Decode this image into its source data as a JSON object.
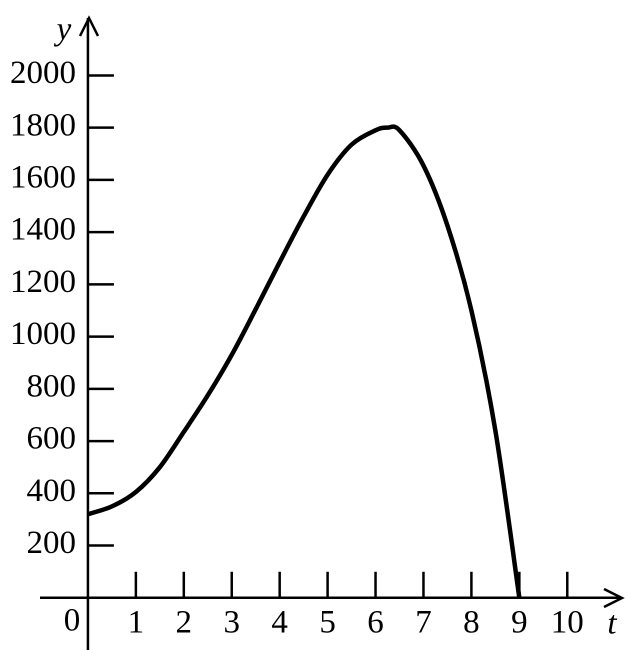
{
  "chart_data": {
    "type": "line",
    "x_label": "t",
    "y_label": "y",
    "origin_label": 0,
    "x": [
      0,
      0.5,
      1,
      1.5,
      2,
      2.5,
      3,
      3.5,
      4,
      4.5,
      5,
      5.5,
      6,
      6.25,
      6.5,
      7,
      7.5,
      8,
      8.5,
      9
    ],
    "series": [
      {
        "color": "#000000",
        "values": [
          320,
          350,
          405,
          500,
          635,
          775,
          930,
          1105,
          1285,
          1460,
          1620,
          1735,
          1790,
          1800,
          1790,
          1655,
          1425,
          1100,
          640,
          0
        ]
      }
    ],
    "xlim": [
      -1,
      11.1
    ],
    "ylim": [
      -200,
      2220
    ],
    "xticks": [
      1,
      2,
      3,
      4,
      5,
      6,
      7,
      8,
      9,
      10
    ],
    "yticks": [
      200,
      400,
      600,
      800,
      1000,
      1200,
      1400,
      1600,
      1800,
      2000
    ]
  }
}
